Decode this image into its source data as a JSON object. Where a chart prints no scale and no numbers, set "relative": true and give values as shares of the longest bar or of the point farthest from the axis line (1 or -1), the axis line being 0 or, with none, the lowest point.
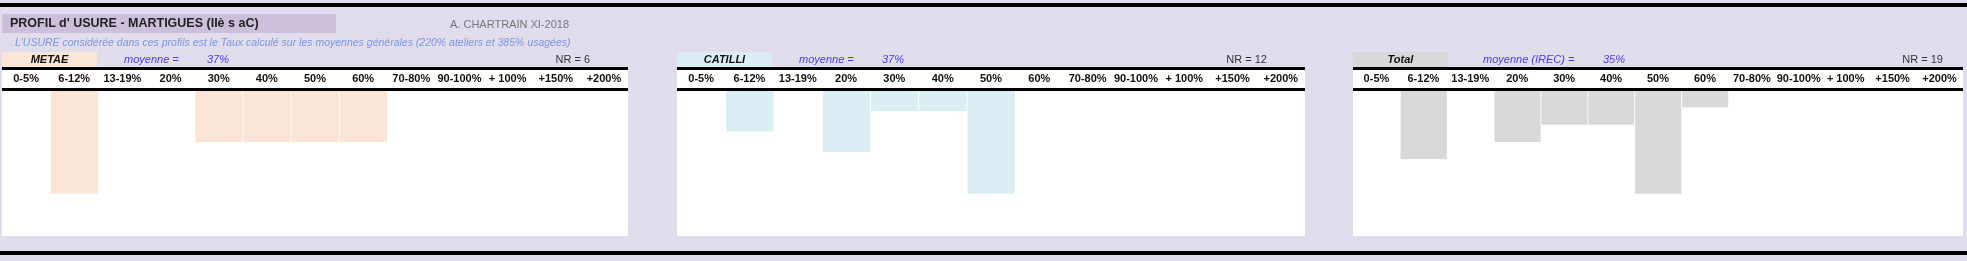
{
  "chart_data": [
    {
      "type": "bar",
      "title": "PROFIL d' USURE  -  MARTIGUES   (IIè s aC)",
      "subtitle": "L'USURE considérée dans ces profils est le Taux calculé sur les moyennes générales (220% ateliers et 385% usagées)",
      "relative": true,
      "legend": "top left",
      "grid": false,
      "categories": [
        "0-5%",
        "6-12%",
        "13-19%",
        "20%",
        "30%",
        "40%",
        "50%",
        "60%",
        "70-80%",
        "90-100%",
        "+ 100%",
        "+150%",
        "+200%"
      ],
      "series": [
        {
          "name": "METAE",
          "color": "#fbe5d6",
          "values": [
            0,
            -1,
            0,
            0,
            -0.5,
            -0.5,
            -0.5,
            -0.5,
            0,
            0,
            0,
            0,
            0
          ]
        }
      ],
      "annotations": [
        "A. CHARTRAIN XI-2018",
        "moyenne =",
        "37%",
        "NR =  6"
      ]
    },
    {
      "type": "bar",
      "relative": true,
      "legend": "top left",
      "grid": false,
      "categories": [
        "0-5%",
        "6-12%",
        "13-19%",
        "20%",
        "30%",
        "40%",
        "50%",
        "60%",
        "70-80%",
        "90-100%",
        "+ 100%",
        "+150%",
        "+200%"
      ],
      "series": [
        {
          "name": "CATILLI",
          "color": "#daeef3",
          "values": [
            0,
            -0.4,
            0,
            -0.6,
            -0.2,
            -0.2,
            -1,
            0,
            0,
            0,
            0,
            0,
            0
          ]
        }
      ],
      "annotations": [
        "moyenne =",
        "37%",
        "NR =  12"
      ]
    },
    {
      "type": "bar",
      "relative": true,
      "legend": "top left",
      "grid": false,
      "categories": [
        "0-5%",
        "6-12%",
        "13-19%",
        "20%",
        "30%",
        "40%",
        "50%",
        "60%",
        "70-80%",
        "90-100%",
        "+ 100%",
        "+150%",
        "+200%"
      ],
      "series": [
        {
          "name": "Total",
          "color": "#d9d9d9",
          "values": [
            0,
            -0.667,
            0,
            -0.5,
            -0.333,
            -0.333,
            -1,
            -0.167,
            0,
            0,
            0,
            0,
            0
          ]
        }
      ],
      "annotations": [
        "moyenne (IREC) =",
        "35%",
        "NR =  19"
      ]
    }
  ]
}
